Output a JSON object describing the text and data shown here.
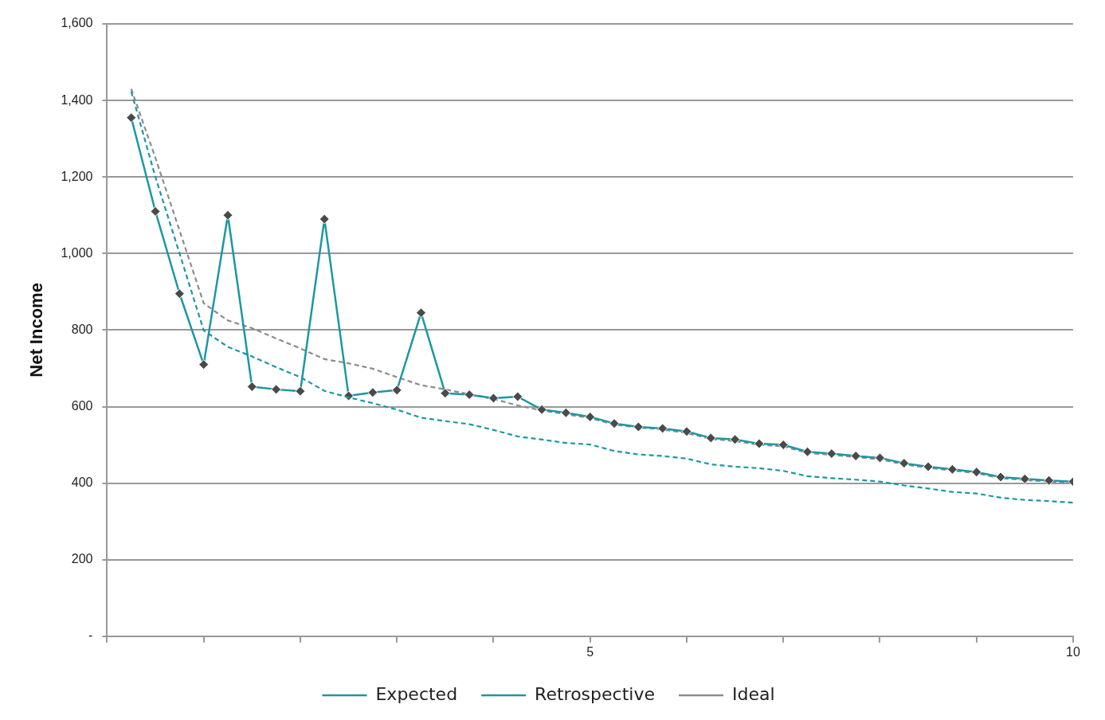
{
  "chart_data": {
    "type": "line",
    "ylabel": "Net Income",
    "x": [
      0.25,
      0.5,
      0.75,
      1,
      1.25,
      1.5,
      1.75,
      2,
      2.25,
      2.5,
      2.75,
      3,
      3.25,
      3.5,
      3.75,
      4,
      4.25,
      4.5,
      4.75,
      5,
      5.25,
      5.5,
      5.75,
      6,
      6.25,
      6.5,
      6.75,
      7,
      7.25,
      7.5,
      7.75,
      8,
      8.25,
      8.5,
      8.75,
      9,
      9.25,
      9.5,
      9.75,
      10
    ],
    "series": [
      {
        "name": "Expected",
        "color": "#1a98a4",
        "line_style": "dashed",
        "marker": "none",
        "values": [
          1423,
          1200,
          1000,
          799,
          756,
          731,
          703,
          677,
          641,
          624,
          609,
          592,
          571,
          562,
          554,
          539,
          522,
          514,
          505,
          501,
          484,
          475,
          471,
          464,
          449,
          443,
          439,
          432,
          418,
          413,
          409,
          404,
          394,
          386,
          377,
          373,
          362,
          356,
          353,
          349
        ]
      },
      {
        "name": "Retrospective",
        "color": "#1a98a4",
        "line_style": "solid",
        "marker": "diamond",
        "values": [
          1355,
          1110,
          895,
          710,
          1100,
          652,
          645,
          640,
          1090,
          628,
          637,
          643,
          845,
          635,
          631,
          622,
          626,
          592,
          584,
          573,
          556,
          547,
          543,
          535,
          518,
          514,
          503,
          500,
          482,
          477,
          471,
          466,
          452,
          443,
          436,
          429,
          416,
          411,
          407,
          404
        ]
      },
      {
        "name": "Ideal",
        "color": "#8c8c8c",
        "line_style": "dashed",
        "marker": "none",
        "values": [
          1430,
          1250,
          1060,
          870,
          825,
          805,
          778,
          752,
          724,
          713,
          699,
          677,
          656,
          645,
          632,
          620,
          603,
          590,
          580,
          570,
          553,
          545,
          540,
          531,
          515,
          510,
          500,
          496,
          479,
          474,
          468,
          462,
          449,
          440,
          433,
          426,
          413,
          408,
          404,
          401
        ]
      }
    ],
    "xlim": [
      0,
      10
    ],
    "xticks": [
      {
        "value": 0,
        "label": null
      },
      {
        "value": 1,
        "label": null
      },
      {
        "value": 2,
        "label": null
      },
      {
        "value": 3,
        "label": null
      },
      {
        "value": 4,
        "label": null
      },
      5,
      {
        "value": 6,
        "label": null
      },
      {
        "value": 7,
        "label": null
      },
      {
        "value": 8,
        "label": null
      },
      {
        "value": 9,
        "label": null
      },
      10
    ],
    "ylim": [
      0,
      1600
    ],
    "yticks": [
      {
        "value": 0,
        "label": "-"
      },
      200,
      400,
      600,
      800,
      {
        "value": 1000,
        "label": "1,000"
      },
      {
        "value": 1200,
        "label": "1,200"
      },
      {
        "value": 1400,
        "label": "1,400"
      },
      {
        "value": 1600,
        "label": "1,600"
      }
    ],
    "grid": "y",
    "legend": "bottom"
  }
}
